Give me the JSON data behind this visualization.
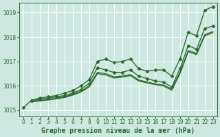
{
  "title": "Graphe pression niveau de la mer (hPa)",
  "bg_color": "#cce8e0",
  "grid_color": "#ffffff",
  "line_color": "#2d6a2d",
  "xlim": [
    -0.5,
    23.5
  ],
  "ylim": [
    1014.75,
    1019.4
  ],
  "yticks": [
    1015,
    1016,
    1017,
    1018,
    1019
  ],
  "xticks": [
    0,
    1,
    2,
    3,
    4,
    5,
    6,
    7,
    8,
    9,
    10,
    11,
    12,
    13,
    14,
    15,
    16,
    17,
    18,
    19,
    20,
    21,
    22,
    23
  ],
  "series": [
    {
      "x": [
        0,
        1,
        2,
        3,
        4,
        5,
        6,
        7,
        8,
        9,
        10,
        11,
        12,
        13,
        14,
        15,
        16,
        17,
        18,
        19,
        20,
        21,
        22,
        23
      ],
      "y": [
        1015.1,
        1015.4,
        1015.5,
        1015.55,
        1015.6,
        1015.7,
        1015.8,
        1016.0,
        1016.25,
        1017.0,
        1017.1,
        1016.95,
        1017.0,
        1017.1,
        1016.7,
        1016.6,
        1016.65,
        1016.65,
        1016.4,
        1017.1,
        1018.2,
        1018.05,
        1019.1,
        1019.25
      ],
      "has_markers": true
    },
    {
      "x": [
        1,
        2,
        3,
        4,
        5,
        6,
        7,
        8,
        9,
        10,
        11,
        12,
        13,
        14,
        15,
        16,
        17,
        18,
        19,
        20,
        21,
        22,
        23
      ],
      "y": [
        1015.4,
        1015.45,
        1015.5,
        1015.55,
        1015.6,
        1015.7,
        1015.85,
        1016.1,
        1016.75,
        1016.65,
        1016.55,
        1016.55,
        1016.65,
        1016.4,
        1016.3,
        1016.2,
        1016.15,
        1015.95,
        1016.7,
        1017.65,
        1017.5,
        1018.35,
        1018.45
      ],
      "has_markers": true
    },
    {
      "x": [
        1,
        2,
        3,
        4,
        5,
        6,
        7,
        8,
        9,
        10,
        11,
        12,
        13,
        14,
        15,
        16,
        17,
        18,
        19,
        20,
        21,
        22,
        23
      ],
      "y": [
        1015.35,
        1015.38,
        1015.42,
        1015.47,
        1015.52,
        1015.62,
        1015.75,
        1015.95,
        1016.5,
        1016.45,
        1016.32,
        1016.36,
        1016.42,
        1016.2,
        1016.12,
        1016.05,
        1016.0,
        1015.82,
        1016.5,
        1017.4,
        1017.28,
        1018.05,
        1018.18
      ],
      "has_markers": false
    },
    {
      "x": [
        1,
        2,
        3,
        4,
        5,
        6,
        7,
        8,
        9,
        10,
        11,
        12,
        13,
        14,
        15,
        16,
        17,
        18,
        19,
        20,
        21,
        22,
        23
      ],
      "y": [
        1015.38,
        1015.4,
        1015.44,
        1015.5,
        1015.55,
        1015.65,
        1015.78,
        1016.0,
        1016.55,
        1016.5,
        1016.37,
        1016.4,
        1016.46,
        1016.24,
        1016.16,
        1016.08,
        1016.03,
        1015.87,
        1016.55,
        1017.45,
        1017.33,
        1018.1,
        1018.22
      ],
      "has_markers": false
    }
  ],
  "marker": "D",
  "markersize": 2.5,
  "linewidth": 1.0,
  "title_fontsize": 7,
  "tick_fontsize": 5.5
}
